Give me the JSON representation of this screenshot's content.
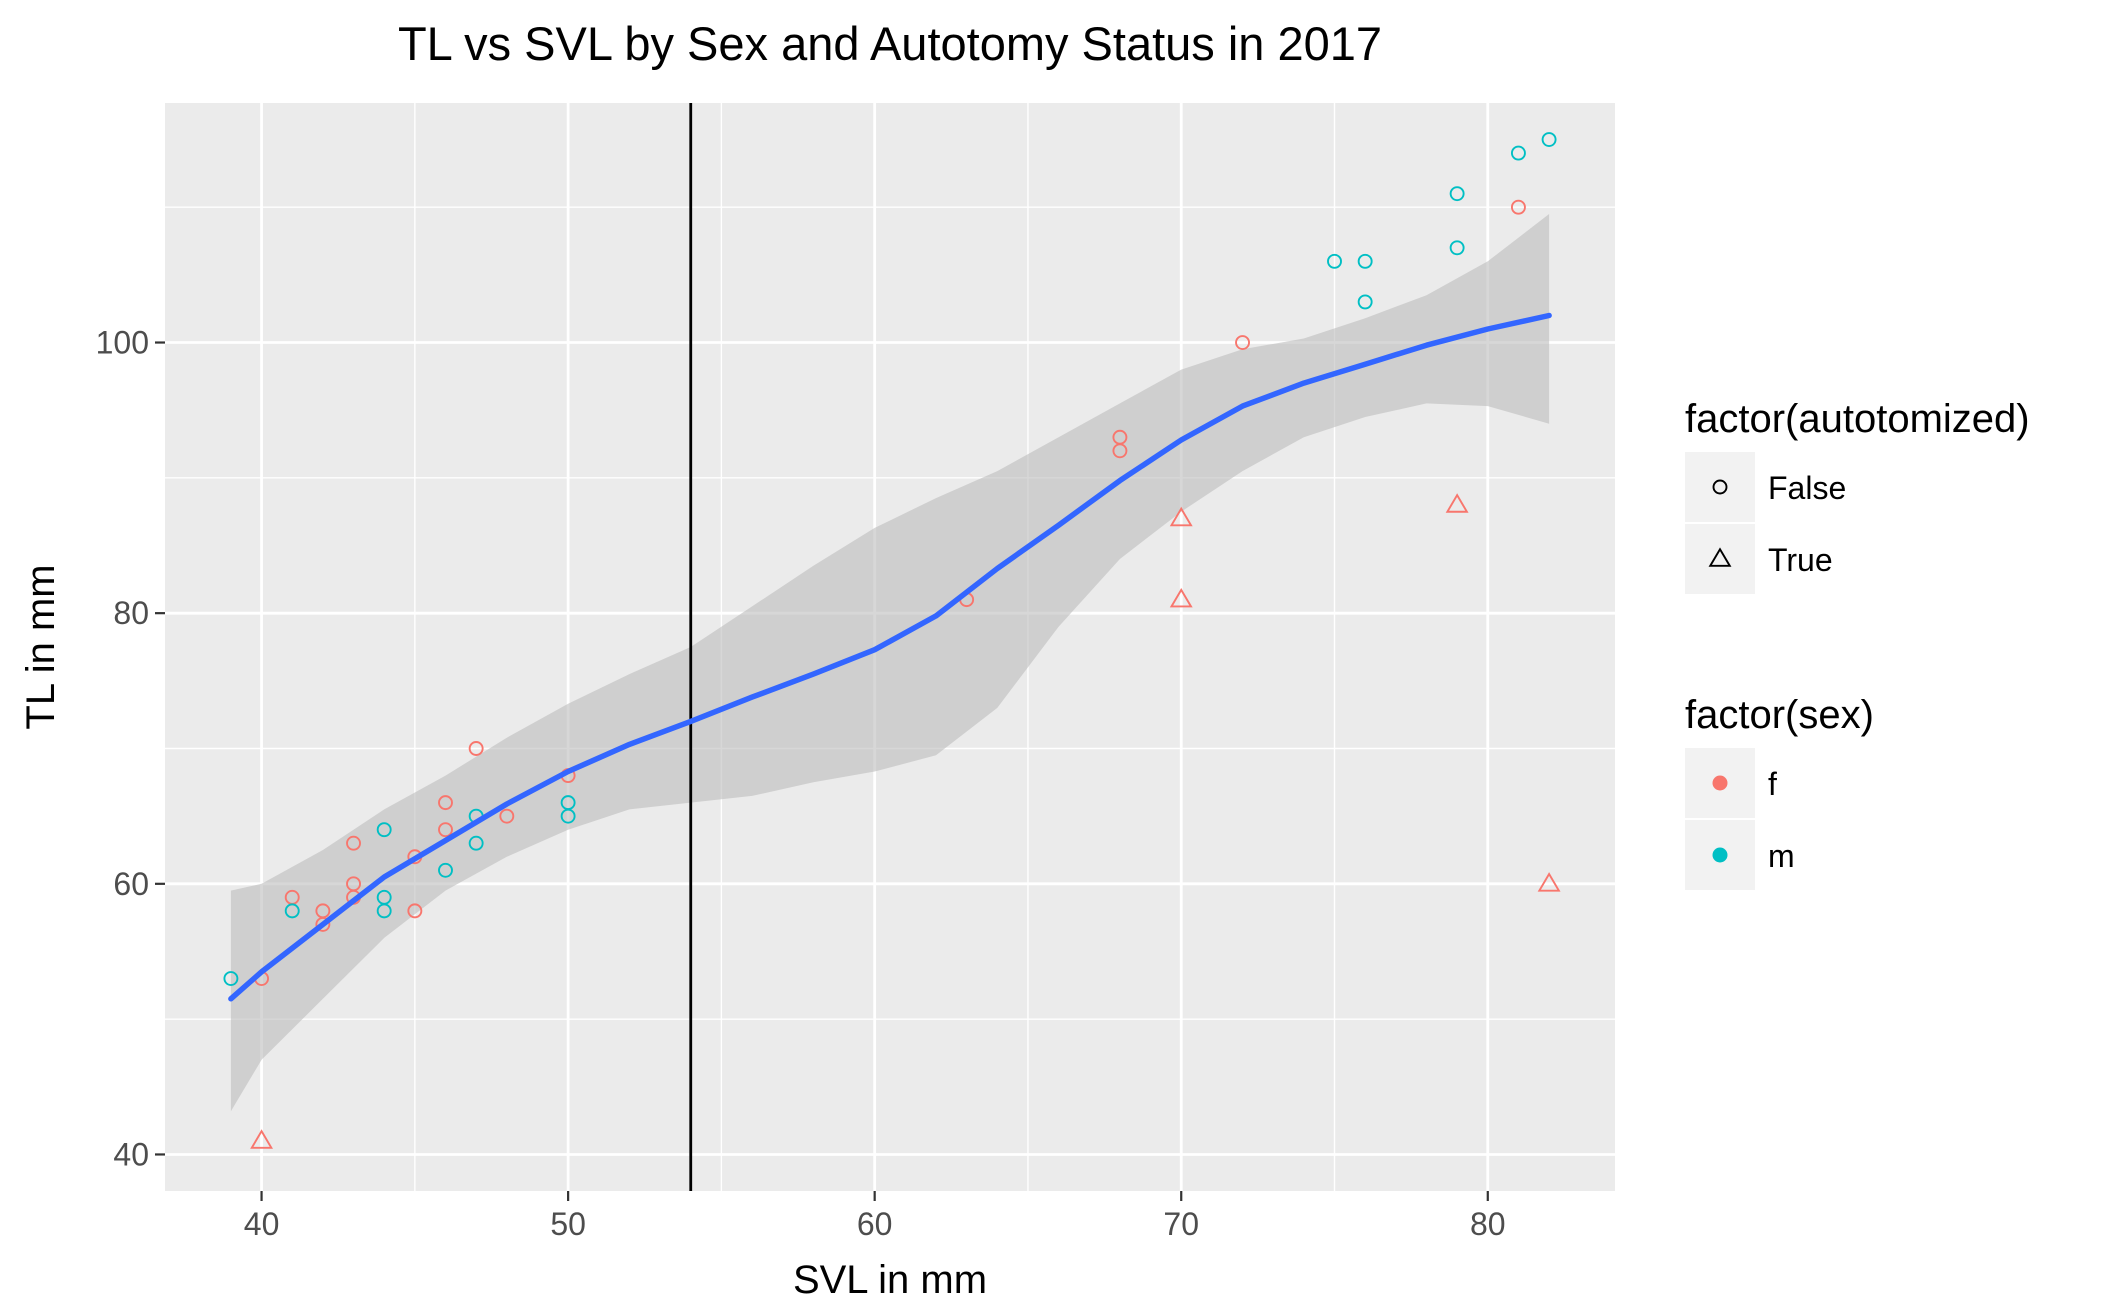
{
  "chart_data": {
    "type": "scatter",
    "title": "TL vs SVL by Sex and Autotomy Status in 2017",
    "xlabel": "SVL in mm",
    "ylabel": "TL in mm",
    "xlim": [
      36.85,
      84.15
    ],
    "ylim": [
      37.3,
      117.7
    ],
    "x_ticks": [
      40,
      50,
      60,
      70,
      80
    ],
    "y_ticks": [
      40,
      60,
      80,
      100
    ],
    "x_minor": [
      45,
      55,
      65,
      75
    ],
    "y_minor": [
      50,
      70,
      90,
      110
    ],
    "grid": true,
    "vline_x": 54,
    "colors": {
      "panel": "#ebebeb",
      "grid": "#ffffff",
      "f": "#f8766d",
      "m": "#00bfc4",
      "smooth": "#3366ff",
      "ribbon": "#bdbdbd",
      "vline": "#000000"
    },
    "legends": [
      {
        "title": "factor(autotomized)",
        "entries": [
          {
            "label": "False",
            "shape": "circle"
          },
          {
            "label": "True",
            "shape": "triangle"
          }
        ]
      },
      {
        "title": "factor(sex)",
        "entries": [
          {
            "label": "f",
            "color_key": "f"
          },
          {
            "label": "m",
            "color_key": "m"
          }
        ]
      }
    ],
    "points": [
      {
        "x": 39,
        "y": 53,
        "sex": "m",
        "autotomized": "False"
      },
      {
        "x": 40,
        "y": 53,
        "sex": "f",
        "autotomized": "False"
      },
      {
        "x": 40,
        "y": 41,
        "sex": "f",
        "autotomized": "True"
      },
      {
        "x": 41,
        "y": 59,
        "sex": "f",
        "autotomized": "False"
      },
      {
        "x": 41,
        "y": 58,
        "sex": "m",
        "autotomized": "False"
      },
      {
        "x": 42,
        "y": 58,
        "sex": "f",
        "autotomized": "False"
      },
      {
        "x": 42,
        "y": 57,
        "sex": "f",
        "autotomized": "False"
      },
      {
        "x": 43,
        "y": 63,
        "sex": "f",
        "autotomized": "False"
      },
      {
        "x": 43,
        "y": 60,
        "sex": "f",
        "autotomized": "False"
      },
      {
        "x": 43,
        "y": 59,
        "sex": "f",
        "autotomized": "False"
      },
      {
        "x": 44,
        "y": 64,
        "sex": "m",
        "autotomized": "False"
      },
      {
        "x": 44,
        "y": 59,
        "sex": "m",
        "autotomized": "False"
      },
      {
        "x": 44,
        "y": 58,
        "sex": "m",
        "autotomized": "False"
      },
      {
        "x": 45,
        "y": 62,
        "sex": "f",
        "autotomized": "False"
      },
      {
        "x": 45,
        "y": 58,
        "sex": "f",
        "autotomized": "False"
      },
      {
        "x": 46,
        "y": 66,
        "sex": "f",
        "autotomized": "False"
      },
      {
        "x": 46,
        "y": 64,
        "sex": "f",
        "autotomized": "False"
      },
      {
        "x": 46,
        "y": 61,
        "sex": "m",
        "autotomized": "False"
      },
      {
        "x": 47,
        "y": 70,
        "sex": "f",
        "autotomized": "False"
      },
      {
        "x": 47,
        "y": 65,
        "sex": "m",
        "autotomized": "False"
      },
      {
        "x": 47,
        "y": 63,
        "sex": "m",
        "autotomized": "False"
      },
      {
        "x": 48,
        "y": 65,
        "sex": "f",
        "autotomized": "False"
      },
      {
        "x": 50,
        "y": 68,
        "sex": "f",
        "autotomized": "False"
      },
      {
        "x": 50,
        "y": 66,
        "sex": "m",
        "autotomized": "False"
      },
      {
        "x": 50,
        "y": 65,
        "sex": "m",
        "autotomized": "False"
      },
      {
        "x": 63,
        "y": 81,
        "sex": "f",
        "autotomized": "False"
      },
      {
        "x": 68,
        "y": 93,
        "sex": "f",
        "autotomized": "False"
      },
      {
        "x": 68,
        "y": 92,
        "sex": "f",
        "autotomized": "False"
      },
      {
        "x": 70,
        "y": 87,
        "sex": "f",
        "autotomized": "True"
      },
      {
        "x": 70,
        "y": 81,
        "sex": "f",
        "autotomized": "True"
      },
      {
        "x": 72,
        "y": 100,
        "sex": "f",
        "autotomized": "False"
      },
      {
        "x": 75,
        "y": 106,
        "sex": "m",
        "autotomized": "False"
      },
      {
        "x": 76,
        "y": 106,
        "sex": "m",
        "autotomized": "False"
      },
      {
        "x": 76,
        "y": 103,
        "sex": "m",
        "autotomized": "False"
      },
      {
        "x": 79,
        "y": 111,
        "sex": "m",
        "autotomized": "False"
      },
      {
        "x": 79,
        "y": 107,
        "sex": "m",
        "autotomized": "False"
      },
      {
        "x": 79,
        "y": 88,
        "sex": "f",
        "autotomized": "True"
      },
      {
        "x": 81,
        "y": 114,
        "sex": "m",
        "autotomized": "False"
      },
      {
        "x": 81,
        "y": 110,
        "sex": "f",
        "autotomized": "False"
      },
      {
        "x": 82,
        "y": 115,
        "sex": "m",
        "autotomized": "False"
      },
      {
        "x": 82,
        "y": 60,
        "sex": "f",
        "autotomized": "True"
      }
    ],
    "smooth": {
      "x": [
        39,
        40,
        42,
        44,
        46,
        48,
        50,
        52,
        54,
        56,
        58,
        60,
        62,
        64,
        66,
        68,
        70,
        72,
        74,
        76,
        78,
        80,
        82
      ],
      "y": [
        51.5,
        53.5,
        57,
        60.5,
        63.2,
        65.9,
        68.3,
        70.3,
        72.0,
        73.8,
        75.5,
        77.3,
        79.8,
        83.3,
        86.5,
        89.8,
        92.8,
        95.3,
        97.0,
        98.4,
        99.8,
        101.0,
        102.0
      ],
      "lower": [
        43.2,
        47.0,
        51.5,
        56.0,
        59.5,
        62.0,
        64.0,
        65.5,
        66.0,
        66.5,
        67.5,
        68.3,
        69.5,
        73.0,
        79.0,
        84.0,
        87.5,
        90.5,
        93.0,
        94.5,
        95.5,
        95.3,
        94.0
      ],
      "upper": [
        59.5,
        60.0,
        62.5,
        65.5,
        68.0,
        70.8,
        73.3,
        75.5,
        77.5,
        80.5,
        83.5,
        86.3,
        88.5,
        90.5,
        93.0,
        95.5,
        98.0,
        99.5,
        100.3,
        101.8,
        103.5,
        106.0,
        109.5
      ]
    }
  }
}
